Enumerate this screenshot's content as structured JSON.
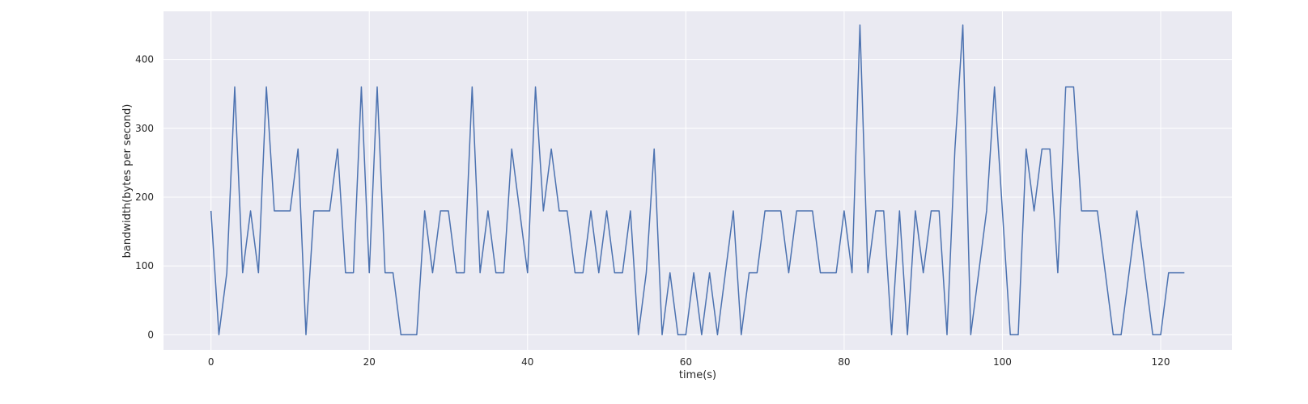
{
  "chart_data": {
    "type": "line",
    "xlabel": "time(s)",
    "ylabel": "bandwidth(bytes per second)",
    "xlim": [
      -6,
      129
    ],
    "ylim": [
      -22,
      470
    ],
    "xticks": [
      0,
      20,
      40,
      60,
      80,
      100,
      120
    ],
    "yticks": [
      0,
      100,
      200,
      300,
      400
    ],
    "grid": true,
    "background": "#eaeaf2",
    "grid_color": "#ffffff",
    "series": [
      {
        "color": "#4c72b0",
        "x": [
          0,
          1,
          2,
          3,
          4,
          5,
          6,
          7,
          8,
          9,
          10,
          11,
          12,
          13,
          14,
          15,
          16,
          17,
          18,
          19,
          20,
          21,
          22,
          23,
          24,
          25,
          26,
          27,
          28,
          29,
          30,
          31,
          32,
          33,
          34,
          35,
          36,
          37,
          38,
          39,
          40,
          41,
          42,
          43,
          44,
          45,
          46,
          47,
          48,
          49,
          50,
          51,
          52,
          53,
          54,
          55,
          56,
          57,
          58,
          59,
          60,
          61,
          62,
          63,
          64,
          65,
          66,
          67,
          68,
          69,
          70,
          71,
          72,
          73,
          74,
          75,
          76,
          77,
          78,
          79,
          80,
          81,
          82,
          83,
          84,
          85,
          86,
          87,
          88,
          89,
          90,
          91,
          92,
          93,
          94,
          95,
          96,
          97,
          98,
          99,
          100,
          101,
          102,
          103,
          104,
          105,
          106,
          107,
          108,
          109,
          110,
          111,
          112,
          113,
          114,
          115,
          116,
          117,
          118,
          119,
          120,
          121,
          122,
          123
        ],
        "y": [
          180,
          0,
          90,
          360,
          90,
          180,
          90,
          360,
          180,
          180,
          180,
          270,
          0,
          180,
          180,
          180,
          270,
          90,
          90,
          360,
          90,
          360,
          90,
          90,
          0,
          0,
          0,
          180,
          90,
          180,
          180,
          90,
          90,
          360,
          90,
          180,
          90,
          90,
          270,
          180,
          90,
          360,
          180,
          270,
          180,
          180,
          90,
          90,
          180,
          90,
          180,
          90,
          90,
          180,
          0,
          90,
          270,
          0,
          90,
          0,
          0,
          90,
          0,
          90,
          0,
          90,
          180,
          0,
          90,
          90,
          180,
          180,
          180,
          90,
          180,
          180,
          180,
          90,
          90,
          90,
          180,
          90,
          450,
          90,
          180,
          180,
          0,
          180,
          0,
          180,
          90,
          180,
          180,
          0,
          270,
          450,
          0,
          90,
          180,
          360,
          180,
          0,
          0,
          270,
          180,
          270,
          270,
          90,
          360,
          360,
          180,
          180,
          180,
          90,
          0,
          0,
          90,
          180,
          90,
          0,
          0,
          90,
          90,
          90
        ]
      }
    ]
  }
}
